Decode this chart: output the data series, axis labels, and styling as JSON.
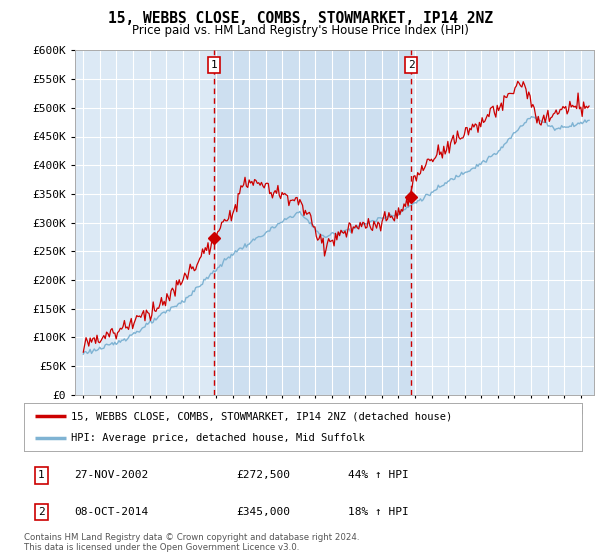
{
  "title": "15, WEBBS CLOSE, COMBS, STOWMARKET, IP14 2NZ",
  "subtitle": "Price paid vs. HM Land Registry's House Price Index (HPI)",
  "legend_line1": "15, WEBBS CLOSE, COMBS, STOWMARKET, IP14 2NZ (detached house)",
  "legend_line2": "HPI: Average price, detached house, Mid Suffolk",
  "sale1_date": "27-NOV-2002",
  "sale1_price": "£272,500",
  "sale1_label": "44% ↑ HPI",
  "sale2_date": "08-OCT-2014",
  "sale2_price": "£345,000",
  "sale2_label": "18% ↑ HPI",
  "footnote1": "Contains HM Land Registry data © Crown copyright and database right 2024.",
  "footnote2": "This data is licensed under the Open Government Licence v3.0.",
  "ylim": [
    0,
    600000
  ],
  "ytick_values": [
    0,
    50000,
    100000,
    150000,
    200000,
    250000,
    300000,
    350000,
    400000,
    450000,
    500000,
    550000,
    600000
  ],
  "ytick_labels": [
    "£0",
    "£50K",
    "£100K",
    "£150K",
    "£200K",
    "£250K",
    "£300K",
    "£350K",
    "£400K",
    "£450K",
    "£500K",
    "£550K",
    "£600K"
  ],
  "plot_bg_color": "#dce9f5",
  "shade_bg_color": "#cddff0",
  "grid_color": "#ffffff",
  "red_line_color": "#cc0000",
  "blue_line_color": "#7fb3d3",
  "vline_color": "#cc0000",
  "box_color": "#cc0000",
  "sale1_x": 2002.9,
  "sale2_x": 2014.77,
  "sale1_price_val": 272500,
  "sale2_price_val": 345000,
  "xstart": 1995,
  "xend": 2025
}
